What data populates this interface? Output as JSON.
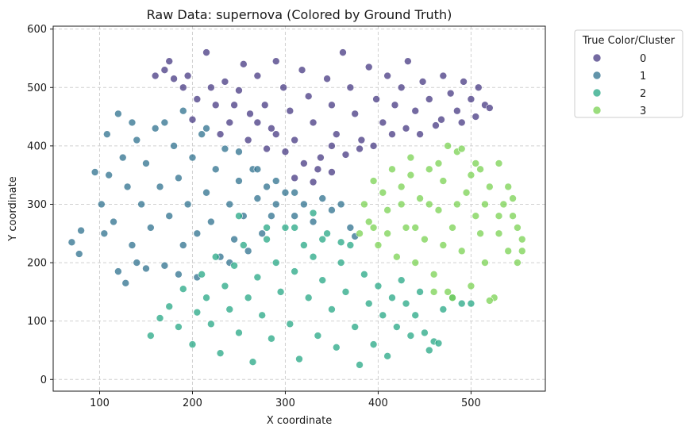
{
  "chart_data": {
    "type": "scatter",
    "title": "Raw Data: supernova (Colored by Ground Truth)",
    "xlabel": "X coordinate",
    "ylabel": "Y coordinate",
    "xlim": [
      50,
      580
    ],
    "ylim": [
      -20,
      605
    ],
    "x_ticks": [
      100,
      200,
      300,
      400,
      500
    ],
    "y_ticks": [
      0,
      100,
      200,
      300,
      400,
      500,
      600
    ],
    "grid": true,
    "grid_style": "dashed",
    "legend": {
      "title": "True Color/Cluster",
      "placement": "outside-top-right"
    },
    "marker_alpha": 0.75,
    "series": [
      {
        "name": "0",
        "color": "#453882",
        "points": [
          [
            160,
            520
          ],
          [
            175,
            545
          ],
          [
            190,
            500
          ],
          [
            205,
            480
          ],
          [
            215,
            560
          ],
          [
            225,
            470
          ],
          [
            235,
            510
          ],
          [
            240,
            440
          ],
          [
            250,
            495
          ],
          [
            255,
            540
          ],
          [
            262,
            455
          ],
          [
            270,
            520
          ],
          [
            278,
            470
          ],
          [
            285,
            430
          ],
          [
            290,
            545
          ],
          [
            298,
            500
          ],
          [
            305,
            460
          ],
          [
            310,
            410
          ],
          [
            318,
            530
          ],
          [
            325,
            485
          ],
          [
            330,
            440
          ],
          [
            338,
            380
          ],
          [
            345,
            515
          ],
          [
            350,
            470
          ],
          [
            355,
            420
          ],
          [
            362,
            560
          ],
          [
            370,
            500
          ],
          [
            375,
            455
          ],
          [
            382,
            410
          ],
          [
            390,
            535
          ],
          [
            398,
            480
          ],
          [
            405,
            440
          ],
          [
            410,
            520
          ],
          [
            418,
            470
          ],
          [
            425,
            500
          ],
          [
            432,
            545
          ],
          [
            440,
            460
          ],
          [
            448,
            510
          ],
          [
            455,
            480
          ],
          [
            462,
            435
          ],
          [
            470,
            520
          ],
          [
            478,
            490
          ],
          [
            485,
            460
          ],
          [
            492,
            510
          ],
          [
            500,
            480
          ],
          [
            508,
            500
          ],
          [
            515,
            470
          ],
          [
            520,
            465
          ],
          [
            200,
            445
          ],
          [
            230,
            420
          ],
          [
            260,
            410
          ],
          [
            280,
            395
          ],
          [
            300,
            390
          ],
          [
            320,
            370
          ],
          [
            335,
            360
          ],
          [
            350,
            400
          ],
          [
            365,
            385
          ],
          [
            380,
            395
          ],
          [
            395,
            400
          ],
          [
            415,
            420
          ],
          [
            430,
            430
          ],
          [
            445,
            420
          ],
          [
            468,
            445
          ],
          [
            490,
            440
          ],
          [
            505,
            450
          ],
          [
            350,
            355
          ],
          [
            310,
            345
          ],
          [
            330,
            338
          ],
          [
            290,
            420
          ],
          [
            270,
            440
          ],
          [
            245,
            470
          ],
          [
            220,
            500
          ],
          [
            195,
            520
          ],
          [
            180,
            515
          ],
          [
            170,
            530
          ]
        ]
      },
      {
        "name": "1",
        "color": "#2d708e",
        "points": [
          [
            70,
            235
          ],
          [
            78,
            215
          ],
          [
            80,
            255
          ],
          [
            95,
            355
          ],
          [
            102,
            300
          ],
          [
            108,
            420
          ],
          [
            115,
            270
          ],
          [
            120,
            455
          ],
          [
            125,
            380
          ],
          [
            130,
            330
          ],
          [
            135,
            230
          ],
          [
            140,
            410
          ],
          [
            145,
            300
          ],
          [
            150,
            370
          ],
          [
            155,
            260
          ],
          [
            160,
            430
          ],
          [
            165,
            330
          ],
          [
            170,
            195
          ],
          [
            175,
            280
          ],
          [
            180,
            400
          ],
          [
            185,
            345
          ],
          [
            190,
            230
          ],
          [
            195,
            300
          ],
          [
            200,
            380
          ],
          [
            205,
            250
          ],
          [
            210,
            420
          ],
          [
            215,
            320
          ],
          [
            220,
            270
          ],
          [
            225,
            360
          ],
          [
            230,
            210
          ],
          [
            235,
            395
          ],
          [
            240,
            300
          ],
          [
            245,
            240
          ],
          [
            250,
            340
          ],
          [
            255,
            280
          ],
          [
            260,
            220
          ],
          [
            265,
            360
          ],
          [
            270,
            310
          ],
          [
            275,
            250
          ],
          [
            280,
            330
          ],
          [
            285,
            280
          ],
          [
            290,
            300
          ],
          [
            300,
            320
          ],
          [
            310,
            280
          ],
          [
            320,
            300
          ],
          [
            330,
            270
          ],
          [
            340,
            310
          ],
          [
            350,
            290
          ],
          [
            360,
            300
          ],
          [
            370,
            260
          ],
          [
            375,
            245
          ],
          [
            120,
            185
          ],
          [
            128,
            165
          ],
          [
            140,
            200
          ],
          [
            150,
            190
          ],
          [
            185,
            180
          ],
          [
            205,
            175
          ],
          [
            240,
            200
          ],
          [
            110,
            350
          ],
          [
            105,
            250
          ],
          [
            135,
            440
          ],
          [
            170,
            440
          ],
          [
            190,
            460
          ],
          [
            215,
            430
          ],
          [
            250,
            390
          ],
          [
            270,
            360
          ],
          [
            290,
            340
          ],
          [
            310,
            320
          ]
        ]
      },
      {
        "name": "2",
        "color": "#25a784",
        "points": [
          [
            155,
            75
          ],
          [
            165,
            105
          ],
          [
            175,
            125
          ],
          [
            185,
            90
          ],
          [
            190,
            155
          ],
          [
            200,
            60
          ],
          [
            205,
            115
          ],
          [
            210,
            180
          ],
          [
            215,
            140
          ],
          [
            220,
            95
          ],
          [
            225,
            210
          ],
          [
            230,
            45
          ],
          [
            235,
            160
          ],
          [
            240,
            120
          ],
          [
            245,
            195
          ],
          [
            250,
            80
          ],
          [
            255,
            230
          ],
          [
            260,
            140
          ],
          [
            265,
            30
          ],
          [
            270,
            175
          ],
          [
            275,
            110
          ],
          [
            280,
            240
          ],
          [
            285,
            70
          ],
          [
            290,
            200
          ],
          [
            295,
            150
          ],
          [
            300,
            260
          ],
          [
            305,
            95
          ],
          [
            310,
            185
          ],
          [
            315,
            35
          ],
          [
            320,
            230
          ],
          [
            325,
            140
          ],
          [
            330,
            210
          ],
          [
            335,
            75
          ],
          [
            340,
            170
          ],
          [
            345,
            250
          ],
          [
            350,
            120
          ],
          [
            355,
            55
          ],
          [
            360,
            200
          ],
          [
            365,
            150
          ],
          [
            370,
            230
          ],
          [
            375,
            90
          ],
          [
            380,
            25
          ],
          [
            385,
            180
          ],
          [
            390,
            130
          ],
          [
            395,
            60
          ],
          [
            400,
            160
          ],
          [
            405,
            110
          ],
          [
            410,
            40
          ],
          [
            415,
            140
          ],
          [
            420,
            90
          ],
          [
            425,
            170
          ],
          [
            430,
            130
          ],
          [
            435,
            75
          ],
          [
            440,
            110
          ],
          [
            445,
            150
          ],
          [
            450,
            80
          ],
          [
            455,
            50
          ],
          [
            460,
            65
          ],
          [
            465,
            62
          ],
          [
            470,
            120
          ],
          [
            480,
            140
          ],
          [
            490,
            130
          ],
          [
            500,
            130
          ],
          [
            250,
            280
          ],
          [
            280,
            260
          ],
          [
            310,
            260
          ],
          [
            340,
            240
          ],
          [
            360,
            235
          ],
          [
            330,
            285
          ]
        ]
      },
      {
        "name": "3",
        "color": "#7ad151",
        "points": [
          [
            380,
            250
          ],
          [
            385,
            300
          ],
          [
            390,
            270
          ],
          [
            395,
            340
          ],
          [
            400,
            230
          ],
          [
            405,
            320
          ],
          [
            410,
            290
          ],
          [
            415,
            360
          ],
          [
            420,
            210
          ],
          [
            425,
            330
          ],
          [
            430,
            260
          ],
          [
            435,
            380
          ],
          [
            440,
            200
          ],
          [
            445,
            310
          ],
          [
            450,
            240
          ],
          [
            455,
            360
          ],
          [
            460,
            180
          ],
          [
            465,
            290
          ],
          [
            470,
            340
          ],
          [
            475,
            150
          ],
          [
            480,
            260
          ],
          [
            485,
            390
          ],
          [
            490,
            220
          ],
          [
            495,
            320
          ],
          [
            500,
            160
          ],
          [
            505,
            280
          ],
          [
            510,
            360
          ],
          [
            515,
            200
          ],
          [
            520,
            330
          ],
          [
            525,
            140
          ],
          [
            530,
            250
          ],
          [
            535,
            300
          ],
          [
            540,
            220
          ],
          [
            545,
            280
          ],
          [
            550,
            200
          ],
          [
            555,
            240
          ],
          [
            520,
            135
          ],
          [
            480,
            140
          ],
          [
            460,
            150
          ],
          [
            490,
            395
          ],
          [
            475,
            400
          ],
          [
            505,
            370
          ],
          [
            530,
            370
          ],
          [
            540,
            330
          ],
          [
            510,
            250
          ],
          [
            470,
            230
          ],
          [
            440,
            260
          ],
          [
            410,
            250
          ],
          [
            395,
            260
          ],
          [
            425,
            300
          ],
          [
            455,
            300
          ],
          [
            485,
            300
          ],
          [
            515,
            300
          ],
          [
            545,
            310
          ],
          [
            435,
            350
          ],
          [
            465,
            370
          ],
          [
            500,
            350
          ],
          [
            530,
            280
          ],
          [
            550,
            260
          ],
          [
            555,
            220
          ]
        ]
      }
    ]
  }
}
